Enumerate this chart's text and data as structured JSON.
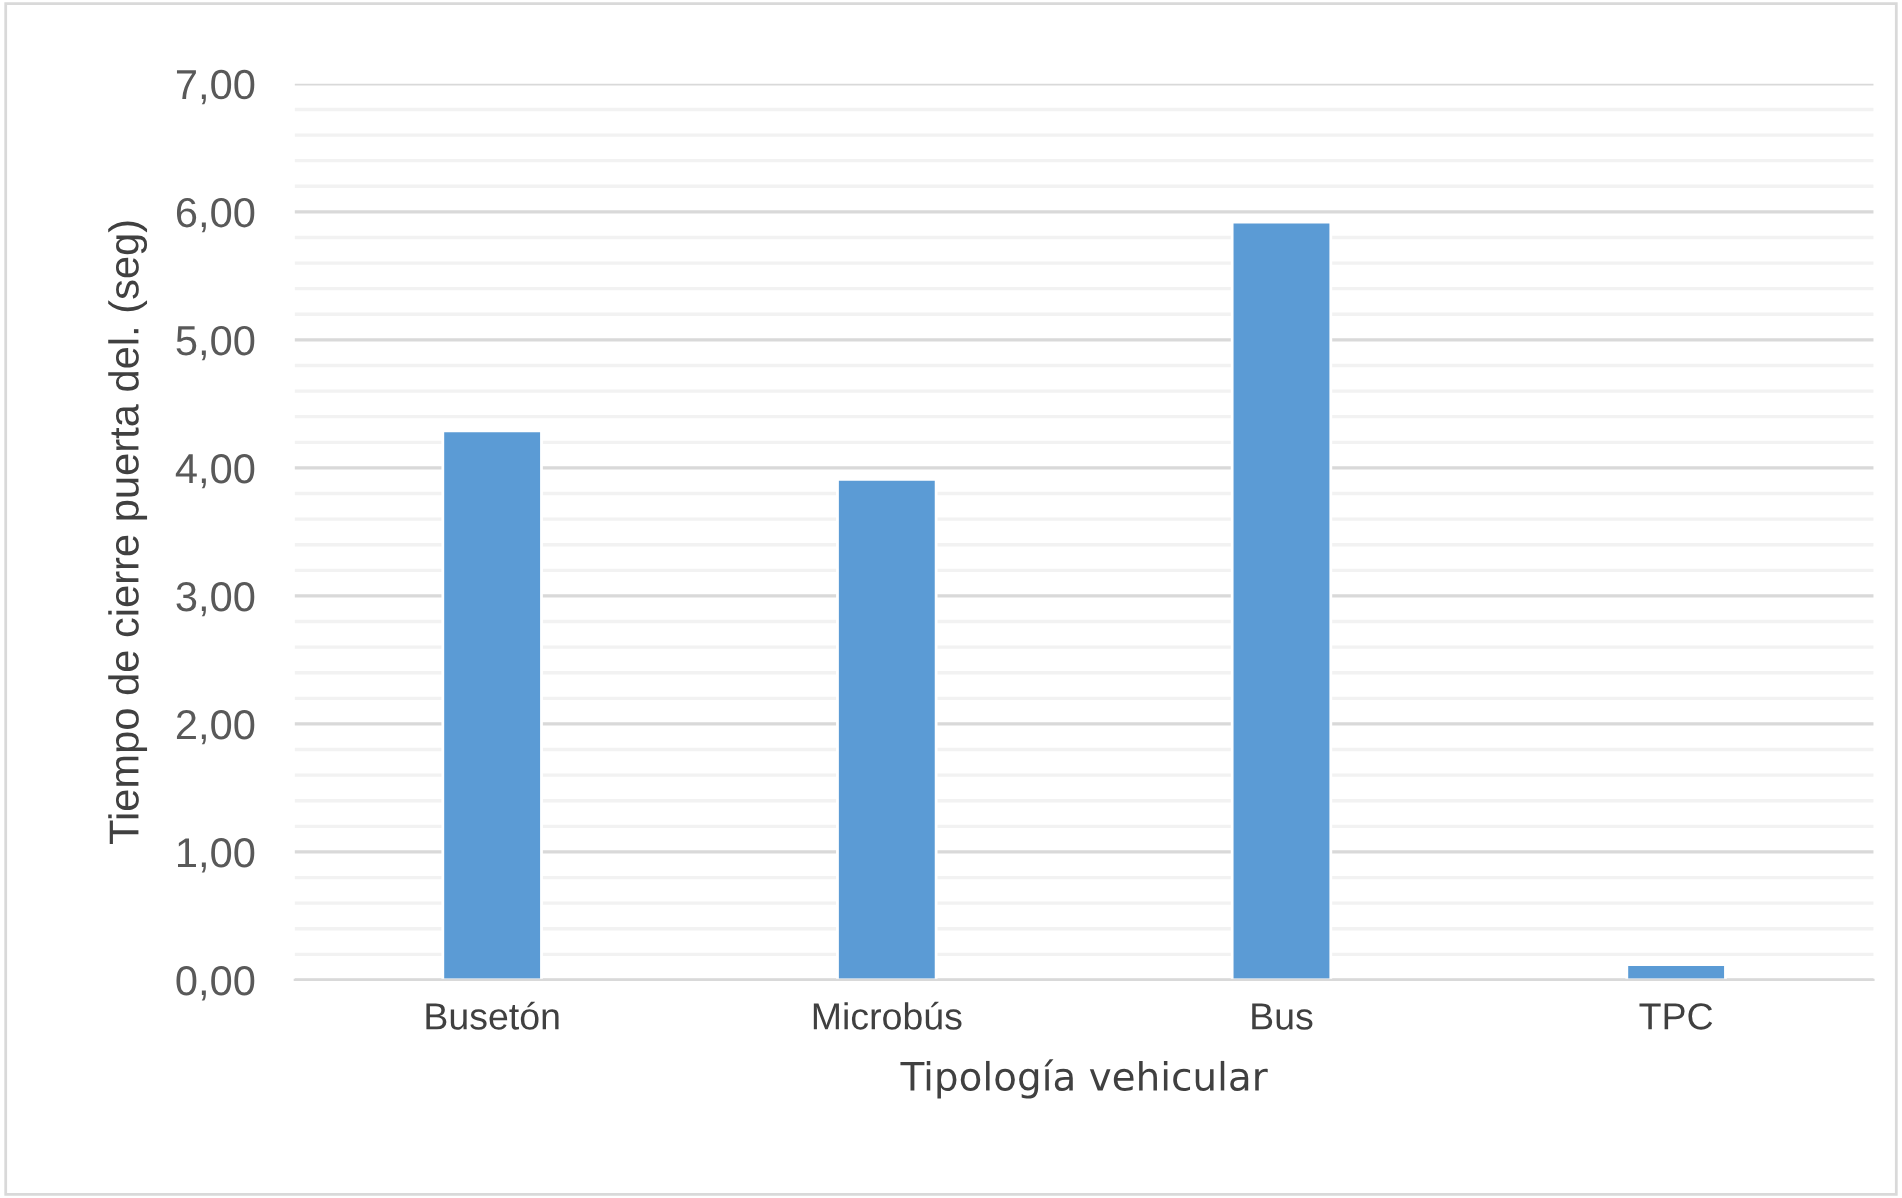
{
  "chart_data": {
    "type": "bar",
    "xlabel": "Tipología vehicular",
    "ylabel": "Tiempo de cierre puerta del. (seg)",
    "categories": [
      "Busetón",
      "Microbús",
      "Bus",
      "TPC"
    ],
    "values": [
      4.29,
      3.91,
      5.92,
      0.12
    ],
    "color": "#5b9bd5",
    "ylim": [
      0,
      7
    ],
    "yticks": [
      {
        "value": 0,
        "label": "0,00"
      },
      {
        "value": 0.2,
        "label": null
      },
      {
        "value": 0.4,
        "label": null
      },
      {
        "value": 0.6,
        "label": null
      },
      {
        "value": 0.8,
        "label": null
      },
      {
        "value": 1,
        "label": "1,00"
      },
      {
        "value": 1.2,
        "label": null
      },
      {
        "value": 1.4,
        "label": null
      },
      {
        "value": 1.6,
        "label": null
      },
      {
        "value": 1.8,
        "label": null
      },
      {
        "value": 2,
        "label": "2,00"
      },
      {
        "value": 2.2,
        "label": null
      },
      {
        "value": 2.4,
        "label": null
      },
      {
        "value": 2.6,
        "label": null
      },
      {
        "value": 2.8,
        "label": null
      },
      {
        "value": 3,
        "label": "3,00"
      },
      {
        "value": 3.2,
        "label": null
      },
      {
        "value": 3.4,
        "label": null
      },
      {
        "value": 3.6,
        "label": null
      },
      {
        "value": 3.8,
        "label": null
      },
      {
        "value": 4,
        "label": "4,00"
      },
      {
        "value": 4.2,
        "label": null
      },
      {
        "value": 4.4,
        "label": null
      },
      {
        "value": 4.6,
        "label": null
      },
      {
        "value": 4.8,
        "label": null
      },
      {
        "value": 5,
        "label": "5,00"
      },
      {
        "value": 5.2,
        "label": null
      },
      {
        "value": 5.4,
        "label": null
      },
      {
        "value": 5.6,
        "label": null
      },
      {
        "value": 5.8,
        "label": null
      },
      {
        "value": 6,
        "label": "6,00"
      },
      {
        "value": 6.2,
        "label": null
      },
      {
        "value": 6.4,
        "label": null
      },
      {
        "value": 6.6,
        "label": null
      },
      {
        "value": 6.8,
        "label": null
      },
      {
        "value": 7,
        "label": "7,00"
      }
    ],
    "grid": "y",
    "legend": false
  }
}
